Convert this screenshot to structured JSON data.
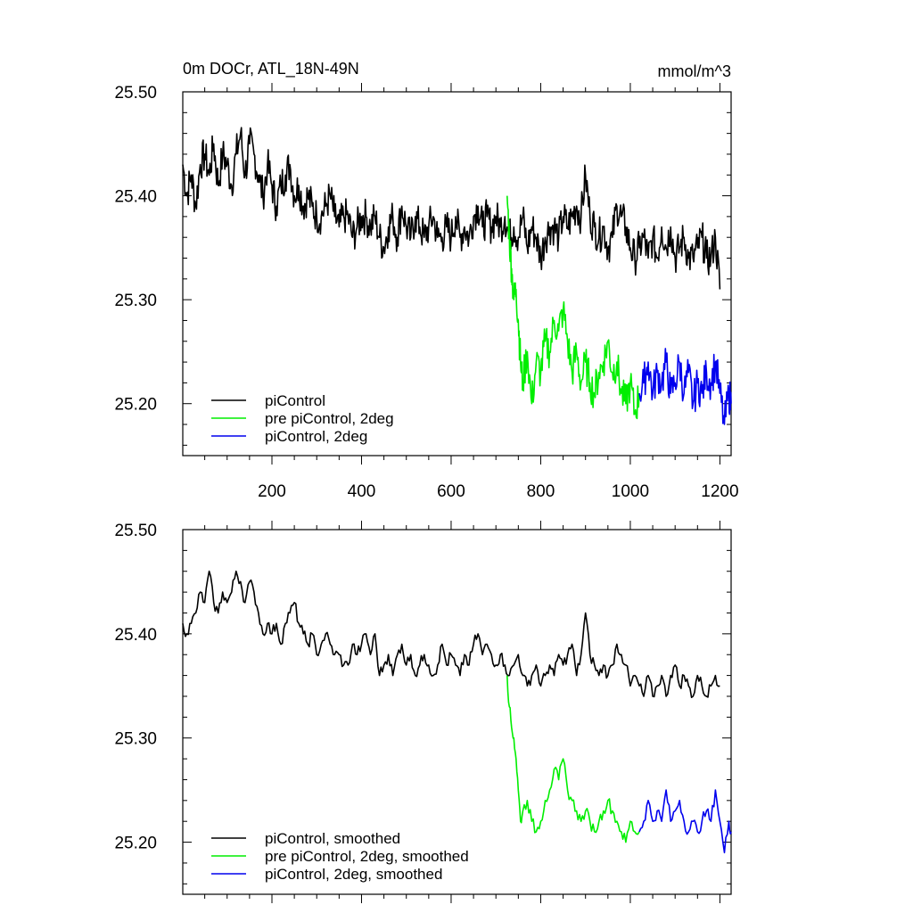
{
  "figure": {
    "title_left": "0m DOCr, ATL_18N-49N",
    "title_right": "mmol/m^3"
  },
  "chart_data": [
    {
      "type": "line",
      "panel": "top",
      "xlim": [
        1,
        1225
      ],
      "ylim": [
        25.15,
        25.5
      ],
      "x_major_ticks": [
        200,
        400,
        600,
        800,
        1000,
        1200
      ],
      "x_tick_labels": [
        "200",
        "400",
        "600",
        "800",
        "1000",
        "1200"
      ],
      "y_major_ticks": [
        25.2,
        25.3,
        25.4,
        25.5
      ],
      "y_tick_labels": [
        "25.20",
        "25.30",
        "25.40",
        "25.50"
      ],
      "legend": {
        "position": "bottom-left"
      },
      "series": [
        {
          "name": "piControl",
          "color": "#000000",
          "x": [
            1,
            10,
            20,
            30,
            40,
            50,
            60,
            70,
            80,
            90,
            100,
            110,
            120,
            130,
            140,
            150,
            160,
            170,
            180,
            190,
            200,
            210,
            220,
            230,
            240,
            250,
            260,
            270,
            280,
            290,
            300,
            310,
            320,
            330,
            340,
            350,
            360,
            370,
            380,
            390,
            400,
            410,
            420,
            430,
            440,
            450,
            460,
            470,
            480,
            490,
            500,
            510,
            520,
            530,
            540,
            550,
            560,
            570,
            580,
            590,
            600,
            610,
            620,
            630,
            640,
            650,
            660,
            670,
            680,
            690,
            700,
            710,
            720,
            730,
            740,
            750,
            760,
            770,
            780,
            790,
            800,
            810,
            820,
            830,
            840,
            850,
            860,
            870,
            880,
            890,
            900,
            910,
            920,
            930,
            940,
            950,
            960,
            970,
            980,
            990,
            1000,
            1010,
            1020,
            1030,
            1040,
            1050,
            1060,
            1070,
            1080,
            1090,
            1100,
            1110,
            1120,
            1130,
            1140,
            1150,
            1160,
            1170,
            1180,
            1190,
            1200
          ],
          "y": [
            25.43,
            25.4,
            25.42,
            25.39,
            25.43,
            25.44,
            25.42,
            25.45,
            25.41,
            25.44,
            25.43,
            25.41,
            25.44,
            25.46,
            25.42,
            25.45,
            25.44,
            25.42,
            25.4,
            25.43,
            25.41,
            25.39,
            25.41,
            25.42,
            25.43,
            25.4,
            25.41,
            25.39,
            25.4,
            25.39,
            25.38,
            25.38,
            25.39,
            25.4,
            25.38,
            25.37,
            25.38,
            25.38,
            25.36,
            25.37,
            25.38,
            25.38,
            25.37,
            25.38,
            25.36,
            25.35,
            25.37,
            25.38,
            25.36,
            25.39,
            25.37,
            25.36,
            25.38,
            25.37,
            25.36,
            25.37,
            25.38,
            25.36,
            25.36,
            25.37,
            25.36,
            25.38,
            25.36,
            25.37,
            25.36,
            25.38,
            25.39,
            25.37,
            25.38,
            25.37,
            25.38,
            25.37,
            25.38,
            25.36,
            25.37,
            25.36,
            25.38,
            25.35,
            25.37,
            25.36,
            25.34,
            25.36,
            25.37,
            25.37,
            25.36,
            25.38,
            25.37,
            25.38,
            25.39,
            25.38,
            25.42,
            25.38,
            25.37,
            25.36,
            25.37,
            25.35,
            25.36,
            25.39,
            25.38,
            25.37,
            25.35,
            25.34,
            25.35,
            25.36,
            25.34,
            25.36,
            25.34,
            25.37,
            25.35,
            25.37,
            25.34,
            25.35,
            25.36,
            25.34,
            25.34,
            25.35,
            25.36,
            25.34,
            25.34,
            25.36,
            25.31
          ]
        },
        {
          "name": "pre piControl, 2deg",
          "color": "#00ee00",
          "x": [
            725,
            730,
            735,
            740,
            745,
            750,
            755,
            760,
            770,
            780,
            790,
            800,
            810,
            820,
            830,
            840,
            850,
            860,
            870,
            880,
            890,
            900,
            910,
            920,
            930,
            940,
            950,
            960,
            970,
            980,
            990,
            1000,
            1010,
            1020
          ],
          "y": [
            25.4,
            25.36,
            25.33,
            25.3,
            25.31,
            25.28,
            25.24,
            25.22,
            25.25,
            25.2,
            25.24,
            25.23,
            25.26,
            25.25,
            25.28,
            25.27,
            25.29,
            25.26,
            25.23,
            25.25,
            25.22,
            25.24,
            25.22,
            25.21,
            25.23,
            25.24,
            25.26,
            25.23,
            25.24,
            25.21,
            25.2,
            25.22,
            25.19,
            25.21
          ]
        },
        {
          "name": "piControl, 2deg",
          "color": "#0000ee",
          "x": [
            1020,
            1030,
            1040,
            1050,
            1060,
            1070,
            1080,
            1090,
            1100,
            1110,
            1120,
            1130,
            1140,
            1150,
            1160,
            1170,
            1180,
            1190,
            1200,
            1210,
            1220,
            1225
          ],
          "y": [
            25.21,
            25.22,
            25.24,
            25.21,
            25.23,
            25.22,
            25.24,
            25.21,
            25.22,
            25.24,
            25.21,
            25.23,
            25.2,
            25.22,
            25.21,
            25.23,
            25.22,
            25.24,
            25.21,
            25.18,
            25.21,
            25.2
          ]
        }
      ]
    },
    {
      "type": "line",
      "panel": "bottom",
      "xlim": [
        1,
        1225
      ],
      "ylim": [
        25.15,
        25.5
      ],
      "x_major_ticks": [
        200,
        400,
        600,
        800,
        1000,
        1200
      ],
      "y_major_ticks": [
        25.2,
        25.3,
        25.4,
        25.5
      ],
      "y_tick_labels": [
        "25.20",
        "25.30",
        "25.40",
        "25.50"
      ],
      "legend": {
        "position": "bottom-left"
      },
      "series": [
        {
          "name": "piControl, smoothed",
          "color": "#000000",
          "x": [
            1,
            10,
            20,
            30,
            40,
            50,
            60,
            70,
            80,
            90,
            100,
            110,
            120,
            130,
            140,
            150,
            160,
            170,
            180,
            190,
            200,
            210,
            220,
            230,
            240,
            250,
            260,
            270,
            280,
            290,
            300,
            310,
            320,
            330,
            340,
            350,
            360,
            370,
            380,
            390,
            400,
            410,
            420,
            430,
            440,
            450,
            460,
            470,
            480,
            490,
            500,
            510,
            520,
            530,
            540,
            550,
            560,
            570,
            580,
            590,
            600,
            610,
            620,
            630,
            640,
            650,
            660,
            670,
            680,
            690,
            700,
            710,
            720,
            730,
            740,
            750,
            760,
            770,
            780,
            790,
            800,
            810,
            820,
            830,
            840,
            850,
            860,
            870,
            880,
            890,
            900,
            910,
            920,
            930,
            940,
            950,
            960,
            970,
            980,
            990,
            1000,
            1010,
            1020,
            1030,
            1040,
            1050,
            1060,
            1070,
            1080,
            1090,
            1100,
            1110,
            1120,
            1130,
            1140,
            1150,
            1160,
            1170,
            1180,
            1190,
            1200
          ],
          "y": [
            25.41,
            25.4,
            25.41,
            25.42,
            25.44,
            25.43,
            25.46,
            25.43,
            25.42,
            25.44,
            25.43,
            25.44,
            25.46,
            25.45,
            25.43,
            25.45,
            25.44,
            25.42,
            25.4,
            25.41,
            25.4,
            25.41,
            25.39,
            25.41,
            25.42,
            25.43,
            25.41,
            25.4,
            25.39,
            25.4,
            25.38,
            25.39,
            25.4,
            25.39,
            25.38,
            25.38,
            25.37,
            25.37,
            25.39,
            25.38,
            25.39,
            25.4,
            25.38,
            25.4,
            25.36,
            25.37,
            25.38,
            25.36,
            25.38,
            25.39,
            25.37,
            25.38,
            25.36,
            25.37,
            25.38,
            25.37,
            25.36,
            25.37,
            25.39,
            25.37,
            25.38,
            25.37,
            25.36,
            25.38,
            25.37,
            25.39,
            25.4,
            25.38,
            25.39,
            25.38,
            25.37,
            25.38,
            25.37,
            25.36,
            25.37,
            25.38,
            25.36,
            25.35,
            25.36,
            25.37,
            25.35,
            25.36,
            25.37,
            25.36,
            25.38,
            25.37,
            25.38,
            25.39,
            25.36,
            25.38,
            25.42,
            25.38,
            25.37,
            25.36,
            25.37,
            25.36,
            25.37,
            25.39,
            25.38,
            25.37,
            25.35,
            25.36,
            25.35,
            25.34,
            25.36,
            25.34,
            25.35,
            25.36,
            25.34,
            25.36,
            25.37,
            25.35,
            25.36,
            25.35,
            25.34,
            25.36,
            25.35,
            25.34,
            25.35,
            25.36,
            25.35
          ]
        },
        {
          "name": "pre piControl, 2deg, smoothed",
          "color": "#00ee00",
          "x": [
            725,
            730,
            735,
            740,
            745,
            750,
            755,
            760,
            770,
            780,
            790,
            800,
            810,
            820,
            830,
            840,
            850,
            860,
            870,
            880,
            890,
            900,
            910,
            920,
            930,
            940,
            950,
            960,
            970,
            980,
            990,
            1000,
            1010,
            1020
          ],
          "y": [
            25.36,
            25.33,
            25.31,
            25.3,
            25.28,
            25.25,
            25.22,
            25.23,
            25.24,
            25.22,
            25.21,
            25.22,
            25.24,
            25.25,
            25.27,
            25.26,
            25.28,
            25.25,
            25.24,
            25.23,
            25.22,
            25.23,
            25.22,
            25.21,
            25.22,
            25.23,
            25.24,
            25.23,
            25.22,
            25.21,
            25.2,
            25.22,
            25.21,
            25.21
          ]
        },
        {
          "name": "piControl, 2deg, smoothed",
          "color": "#0000ee",
          "x": [
            1020,
            1030,
            1040,
            1050,
            1060,
            1070,
            1080,
            1090,
            1100,
            1110,
            1120,
            1130,
            1140,
            1150,
            1160,
            1170,
            1180,
            1190,
            1200,
            1210,
            1220,
            1225
          ],
          "y": [
            25.21,
            25.22,
            25.24,
            25.22,
            25.23,
            25.22,
            25.25,
            25.22,
            25.23,
            25.24,
            25.22,
            25.21,
            25.22,
            25.21,
            25.22,
            25.23,
            25.22,
            25.25,
            25.22,
            25.19,
            25.22,
            25.21
          ]
        }
      ]
    }
  ]
}
